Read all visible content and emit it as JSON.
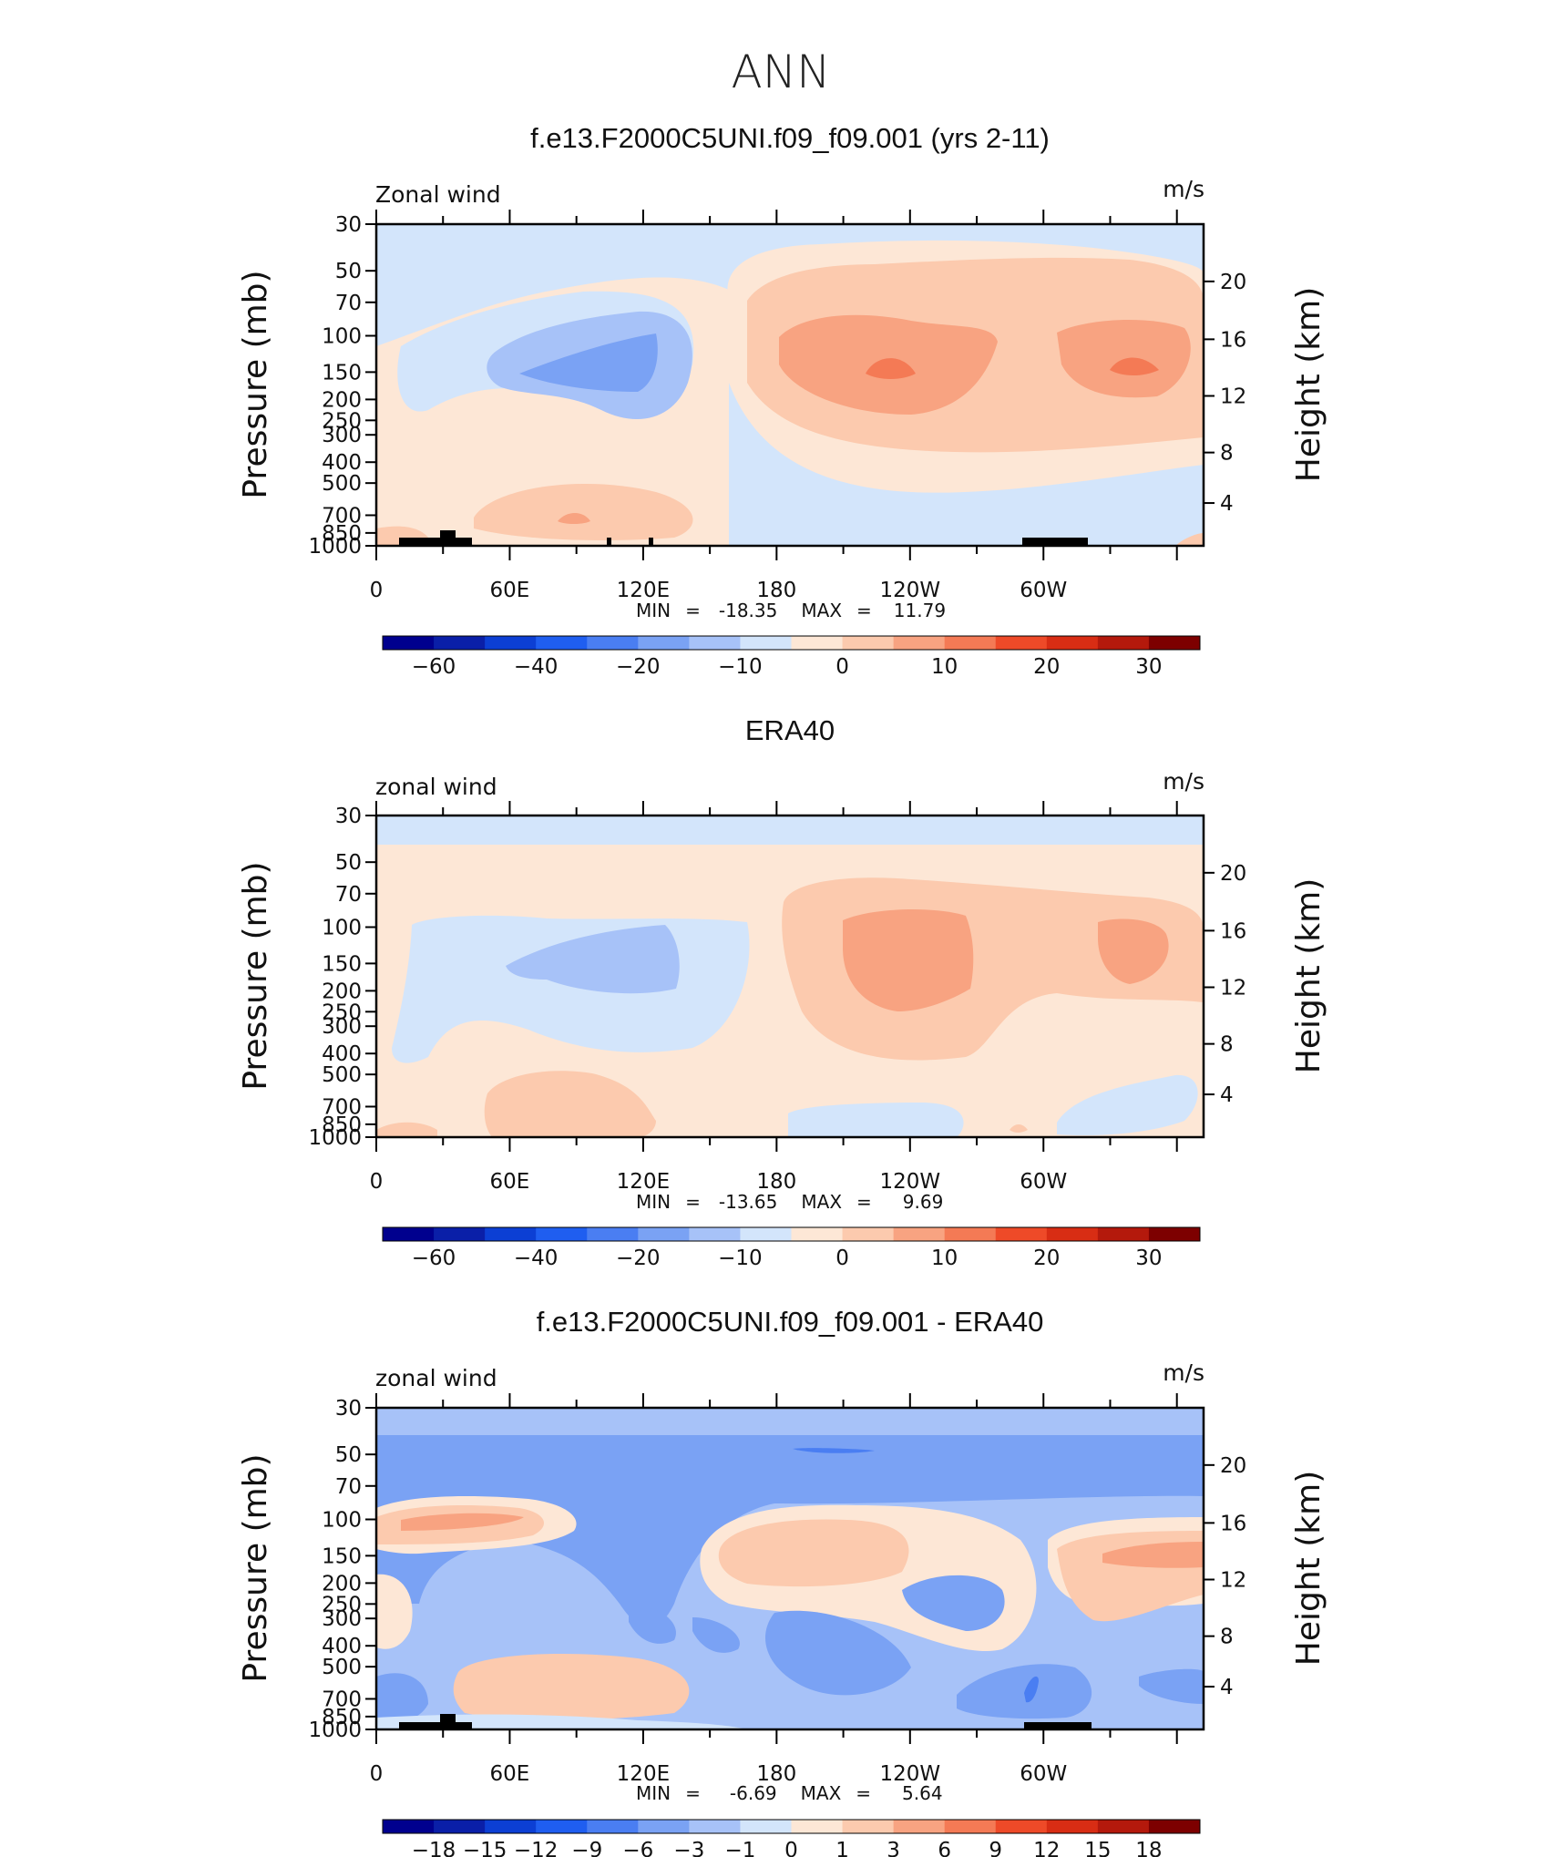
{
  "main_title": "ANN",
  "chart_data": [
    {
      "type": "heatmap",
      "title": "f.e13.F2000C5UNI.f09_f09.001 (yrs 2-11)",
      "variable": "Zonal wind",
      "units": "m/s",
      "ylabel": "Pressure (mb)",
      "y2label": "Height (km)",
      "pressure_ticks": [
        "30",
        "50",
        "70",
        "100",
        "150",
        "200",
        "250",
        "300",
        "400",
        "500",
        "700",
        "850",
        "1000"
      ],
      "height_ticks": [
        "20",
        "16",
        "12",
        "8",
        "4"
      ],
      "lon_ticks": [
        "0",
        "60E",
        "120E",
        "180",
        "120W",
        "60W"
      ],
      "min": "-18.35",
      "max": "11.79",
      "colorbar_labels": [
        "−60",
        "−40",
        "−20",
        "−10",
        "0",
        "10",
        "20",
        "30"
      ]
    },
    {
      "type": "heatmap",
      "title": "ERA40",
      "variable": "zonal wind",
      "units": "m/s",
      "ylabel": "Pressure (mb)",
      "y2label": "Height (km)",
      "pressure_ticks": [
        "30",
        "50",
        "70",
        "100",
        "150",
        "200",
        "250",
        "300",
        "400",
        "500",
        "700",
        "850",
        "1000"
      ],
      "height_ticks": [
        "20",
        "16",
        "12",
        "8",
        "4"
      ],
      "lon_ticks": [
        "0",
        "60E",
        "120E",
        "180",
        "120W",
        "60W"
      ],
      "min": "-13.65",
      "max": "9.69",
      "colorbar_labels": [
        "−60",
        "−40",
        "−20",
        "−10",
        "0",
        "10",
        "20",
        "30"
      ]
    },
    {
      "type": "heatmap",
      "title": "f.e13.F2000C5UNI.f09_f09.001 - ERA40",
      "variable": "zonal wind",
      "units": "m/s",
      "ylabel": "Pressure (mb)",
      "y2label": "Height (km)",
      "pressure_ticks": [
        "30",
        "50",
        "70",
        "100",
        "150",
        "200",
        "250",
        "300",
        "400",
        "500",
        "700",
        "850",
        "1000"
      ],
      "height_ticks": [
        "20",
        "16",
        "12",
        "8",
        "4"
      ],
      "lon_ticks": [
        "0",
        "60E",
        "120E",
        "180",
        "120W",
        "60W"
      ],
      "min": "-6.69",
      "max": "5.64",
      "colorbar_labels": [
        "−18",
        "−15",
        "−12",
        "−9",
        "−6",
        "−3",
        "−1",
        "0",
        "1",
        "3",
        "6",
        "9",
        "12",
        "15",
        "18"
      ]
    }
  ],
  "labels": {
    "min": "MIN",
    "max": "MAX",
    "eq": "="
  },
  "colors": {
    "palette": [
      "#00008e",
      "#0a1fa8",
      "#0c3fd4",
      "#1f5ef0",
      "#4a7ef2",
      "#7aa2f4",
      "#a7c2f8",
      "#d3e5fb",
      "#fde7d6",
      "#fccaae",
      "#f8a381",
      "#f47a55",
      "#ee4a28",
      "#d82d14",
      "#b4190c",
      "#7d0000"
    ],
    "frame": "#000000",
    "topography": "#000000"
  }
}
